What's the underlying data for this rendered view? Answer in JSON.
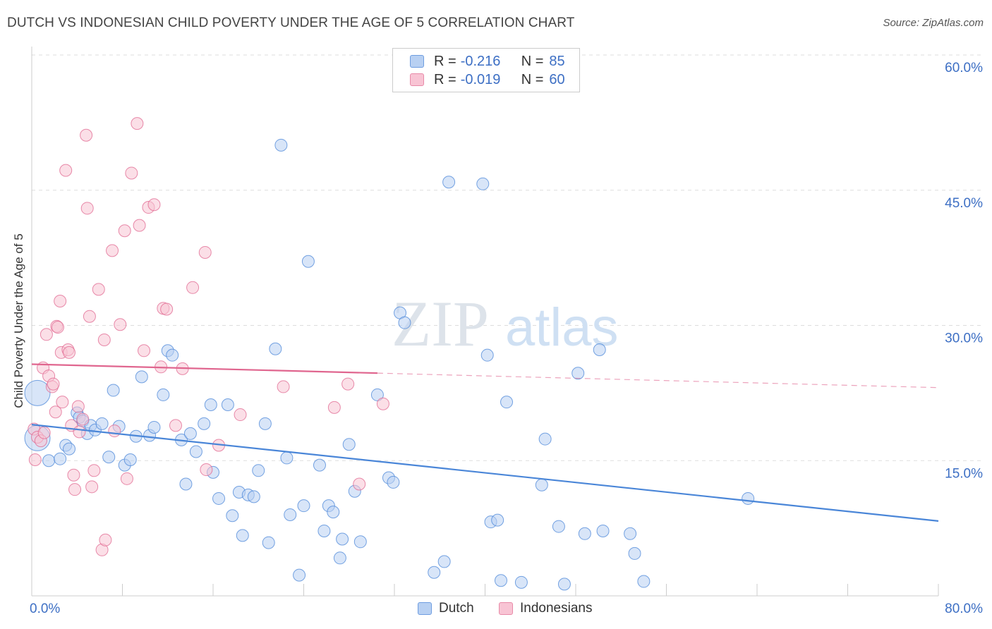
{
  "title": "DUTCH VS INDONESIAN CHILD POVERTY UNDER THE AGE OF 5 CORRELATION CHART",
  "source": "Source: ZipAtlas.com",
  "watermark": {
    "zip": "ZIP",
    "atlas": "atlas"
  },
  "legend_stats": [
    {
      "r_label": "R =",
      "r_value": "-0.216",
      "n_label": "N =",
      "n_value": "85",
      "fill": "#b8d0f2",
      "stroke": "#6e9de0"
    },
    {
      "r_label": "R =",
      "r_value": "-0.019",
      "n_label": "N =",
      "n_value": "60",
      "fill": "#f8c4d4",
      "stroke": "#e88aa8"
    }
  ],
  "chart_data": {
    "type": "scatter",
    "ylabel": "Child Poverty Under the Age of 5",
    "xlim": [
      0,
      80
    ],
    "ylim": [
      0,
      60
    ],
    "x_tick_labels": [
      "0.0%",
      "80.0%"
    ],
    "y_ticks": [
      15,
      30,
      45,
      60
    ],
    "y_tick_labels": [
      "15.0%",
      "30.0%",
      "45.0%",
      "60.0%"
    ],
    "grid": true,
    "legend_position": "bottom-center",
    "series": [
      {
        "name": "Dutch",
        "color": "#4a86d8",
        "fill": "#b8d0f2",
        "trend": {
          "x0": 0,
          "y0": 19.0,
          "x1": 80,
          "y1": 8.3,
          "solid_to": 80
        },
        "points": [
          [
            0.5,
            22.5,
            1
          ],
          [
            0.5,
            17.5,
            1
          ],
          [
            1.5,
            15,
            0
          ],
          [
            2.5,
            15.2,
            0
          ],
          [
            3,
            16.7,
            0
          ],
          [
            3.3,
            16.3,
            0
          ],
          [
            4,
            20.3,
            0
          ],
          [
            4.2,
            19.8,
            0
          ],
          [
            4.5,
            19.4,
            0
          ],
          [
            4.9,
            18,
            0
          ],
          [
            5.2,
            18.9,
            0
          ],
          [
            5.6,
            18.4,
            0
          ],
          [
            6.2,
            19.1,
            0
          ],
          [
            6.8,
            15.4,
            0
          ],
          [
            7.2,
            22.8,
            0
          ],
          [
            7.7,
            18.8,
            0
          ],
          [
            8.2,
            14.5,
            0
          ],
          [
            8.7,
            15.1,
            0
          ],
          [
            9.2,
            17.7,
            0
          ],
          [
            9.7,
            24.3,
            0
          ],
          [
            10.4,
            17.8,
            0
          ],
          [
            10.8,
            18.7,
            0
          ],
          [
            11.6,
            22.3,
            0
          ],
          [
            12,
            27.2,
            0
          ],
          [
            12.4,
            26.7,
            0
          ],
          [
            13.2,
            17.3,
            0
          ],
          [
            13.6,
            12.4,
            0
          ],
          [
            14,
            18,
            0
          ],
          [
            14.5,
            16,
            0
          ],
          [
            15.2,
            19.1,
            0
          ],
          [
            15.8,
            21.2,
            0
          ],
          [
            16,
            13.7,
            0
          ],
          [
            16.5,
            10.8,
            0
          ],
          [
            17.3,
            21.2,
            0
          ],
          [
            17.7,
            8.9,
            0
          ],
          [
            18.3,
            11.5,
            0
          ],
          [
            18.6,
            6.7,
            0
          ],
          [
            19.1,
            11.2,
            0
          ],
          [
            19.6,
            11,
            0
          ],
          [
            20,
            13.9,
            0
          ],
          [
            20.6,
            19.1,
            0
          ],
          [
            20.9,
            5.9,
            0
          ],
          [
            21.5,
            27.4,
            0
          ],
          [
            22,
            50,
            0
          ],
          [
            22.5,
            15.3,
            0
          ],
          [
            22.8,
            9,
            0
          ],
          [
            23.6,
            2.3,
            0
          ],
          [
            24,
            10,
            0
          ],
          [
            24.4,
            37.1,
            0
          ],
          [
            25.4,
            14.5,
            0
          ],
          [
            25.8,
            7.2,
            0
          ],
          [
            26.2,
            10,
            0
          ],
          [
            26.6,
            9.3,
            0
          ],
          [
            27.2,
            4.2,
            0
          ],
          [
            27.4,
            6.3,
            0
          ],
          [
            28,
            16.8,
            0
          ],
          [
            28.5,
            11.6,
            0
          ],
          [
            29,
            6,
            0
          ],
          [
            30.5,
            22.3,
            0
          ],
          [
            31.5,
            13.1,
            0
          ],
          [
            31.9,
            12.6,
            0
          ],
          [
            32.5,
            31.4,
            0
          ],
          [
            32.9,
            30.3,
            0
          ],
          [
            35.5,
            2.6,
            0
          ],
          [
            36.4,
            3.8,
            0
          ],
          [
            36.8,
            45.9,
            0
          ],
          [
            39.8,
            45.7,
            0
          ],
          [
            40.2,
            26.7,
            0
          ],
          [
            40.5,
            8.2,
            0
          ],
          [
            41.1,
            8.4,
            0
          ],
          [
            41.4,
            1.7,
            0
          ],
          [
            41.9,
            21.5,
            0
          ],
          [
            43.2,
            1.5,
            0
          ],
          [
            45,
            12.3,
            0
          ],
          [
            45.3,
            17.4,
            0
          ],
          [
            46.5,
            7.7,
            0
          ],
          [
            47,
            1.3,
            0
          ],
          [
            48.2,
            24.7,
            0
          ],
          [
            48.8,
            6.9,
            0
          ],
          [
            50.1,
            27.3,
            0
          ],
          [
            50.4,
            7.2,
            0
          ],
          [
            52.8,
            6.9,
            0
          ],
          [
            53.2,
            4.7,
            0
          ],
          [
            54,
            1.6,
            0
          ],
          [
            63.2,
            10.8,
            0
          ]
        ]
      },
      {
        "name": "Indonesians",
        "color": "#e0668f",
        "fill": "#f8c4d4",
        "trend": {
          "x0": 0,
          "y0": 25.7,
          "x1": 80,
          "y1": 23.1,
          "solid_to": 30.5
        },
        "points": [
          [
            0.2,
            18.5,
            0
          ],
          [
            0.3,
            15.1,
            0
          ],
          [
            0.5,
            17.6,
            0
          ],
          [
            0.8,
            17.2,
            0
          ],
          [
            1,
            25.3,
            0
          ],
          [
            1.1,
            18.1,
            0
          ],
          [
            1.3,
            29,
            0
          ],
          [
            1.5,
            24.4,
            0
          ],
          [
            1.8,
            23.2,
            0
          ],
          [
            1.9,
            23.5,
            0
          ],
          [
            2.1,
            20.4,
            0
          ],
          [
            2.2,
            29.9,
            0
          ],
          [
            2.3,
            29.8,
            0
          ],
          [
            2.5,
            32.7,
            0
          ],
          [
            2.6,
            27,
            0
          ],
          [
            2.7,
            21.5,
            0
          ],
          [
            3,
            47.2,
            0
          ],
          [
            3.2,
            27.3,
            0
          ],
          [
            3.3,
            27,
            0
          ],
          [
            3.5,
            18.9,
            0
          ],
          [
            3.7,
            13.4,
            0
          ],
          [
            3.8,
            11.8,
            0
          ],
          [
            4.1,
            21,
            0
          ],
          [
            4.2,
            18.2,
            0
          ],
          [
            4.5,
            19.6,
            0
          ],
          [
            4.8,
            51.1,
            0
          ],
          [
            4.9,
            43,
            0
          ],
          [
            5.1,
            31,
            0
          ],
          [
            5.3,
            12.1,
            0
          ],
          [
            5.5,
            13.9,
            0
          ],
          [
            5.9,
            34,
            0
          ],
          [
            6.2,
            5.1,
            0
          ],
          [
            6.4,
            28.4,
            0
          ],
          [
            6.5,
            6.2,
            0
          ],
          [
            7.1,
            38.3,
            0
          ],
          [
            7.3,
            18.3,
            0
          ],
          [
            7.8,
            30.1,
            0
          ],
          [
            8.2,
            40.5,
            0
          ],
          [
            8.4,
            13,
            0
          ],
          [
            8.8,
            46.9,
            0
          ],
          [
            9.3,
            52.4,
            0
          ],
          [
            9.5,
            41.1,
            0
          ],
          [
            9.9,
            27.2,
            0
          ],
          [
            10.3,
            43.1,
            0
          ],
          [
            10.8,
            43.4,
            0
          ],
          [
            11.4,
            25.4,
            0
          ],
          [
            11.6,
            31.9,
            0
          ],
          [
            11.9,
            31.8,
            0
          ],
          [
            12.7,
            18.9,
            0
          ],
          [
            13.3,
            25.2,
            0
          ],
          [
            14.2,
            34.2,
            0
          ],
          [
            15.3,
            38.1,
            0
          ],
          [
            15.4,
            14,
            0
          ],
          [
            16.5,
            16.7,
            0
          ],
          [
            18.4,
            20.1,
            0
          ],
          [
            22.2,
            23.2,
            0
          ],
          [
            26.7,
            20.9,
            0
          ],
          [
            27.9,
            23.5,
            0
          ],
          [
            28.9,
            12.4,
            0
          ],
          [
            31,
            21.3,
            0
          ]
        ]
      }
    ]
  }
}
